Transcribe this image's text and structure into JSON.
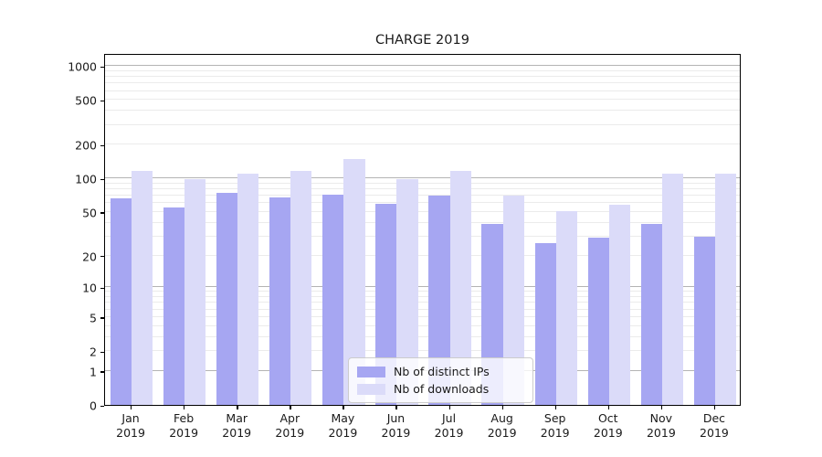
{
  "title": "CHARGE 2019",
  "chart_data": {
    "type": "bar",
    "title": "CHARGE 2019",
    "categories": [
      "Jan",
      "Feb",
      "Mar",
      "Apr",
      "May",
      "Jun",
      "Jul",
      "Aug",
      "Sep",
      "Oct",
      "Nov",
      "Dec"
    ],
    "category_year": "2019",
    "series": [
      {
        "name": "Nb of distinct IPs",
        "color": "#a6a6f2",
        "values": [
          67,
          55,
          75,
          68,
          72,
          59,
          70,
          39,
          26,
          29,
          39,
          30
        ]
      },
      {
        "name": "Nb of downloads",
        "color": "#dbdbf9",
        "values": [
          117,
          98,
          110,
          118,
          150,
          99,
          116,
          70,
          51,
          58,
          111,
          111
        ]
      }
    ],
    "xlabel": "",
    "ylabel": "",
    "yscale": "log1p",
    "ylim": [
      0,
      1280
    ],
    "yticks": [
      0,
      1,
      2,
      5,
      10,
      20,
      50,
      100,
      200,
      500,
      1000
    ],
    "ytick_labels": [
      "0",
      "1",
      "2",
      "5",
      "10",
      "20",
      "50",
      "100",
      "200",
      "500",
      "1000"
    ],
    "grid": "both",
    "legend_position": "lower center"
  },
  "colors": {
    "major_grid": "#b4b4b4",
    "minor_grid": "#ebebeb",
    "spine": "#000000",
    "text": "#1a1a1a",
    "legend_border": "#cccccc"
  }
}
